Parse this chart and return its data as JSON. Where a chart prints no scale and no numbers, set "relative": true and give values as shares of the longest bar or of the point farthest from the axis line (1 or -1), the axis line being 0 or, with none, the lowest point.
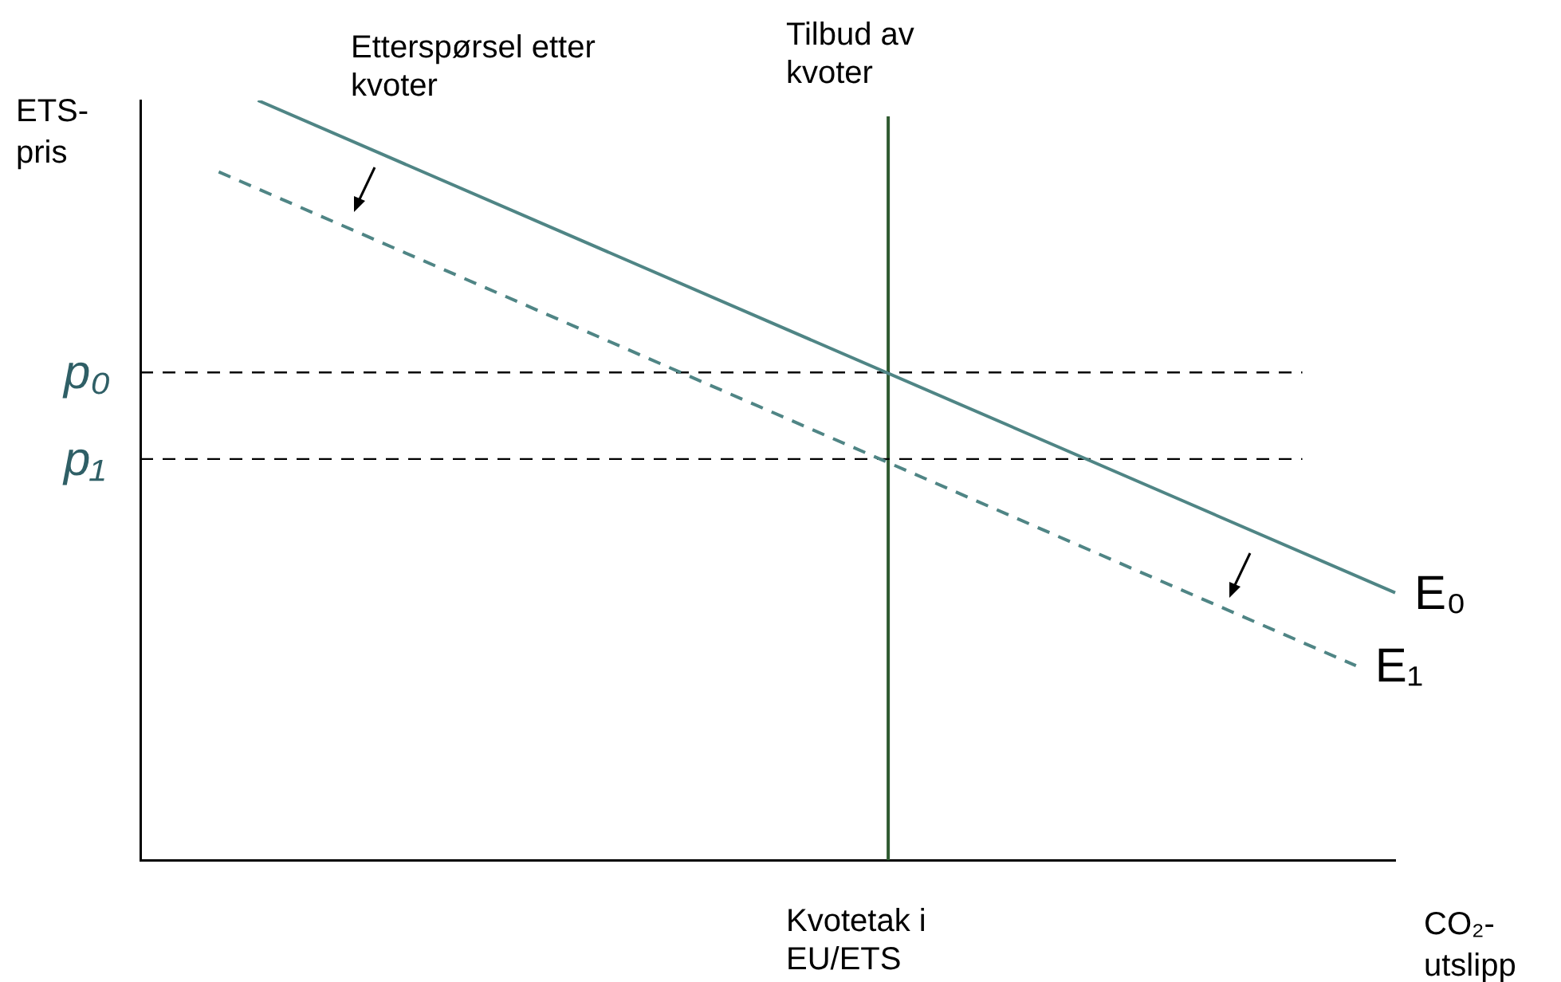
{
  "chart_data": {
    "type": "line",
    "relative": true,
    "xlabel": "CO₂-utslipp",
    "ylabel": "ETS-pris",
    "grid": false,
    "legend": false,
    "marker": "none",
    "categories": [
      null,
      null,
      null,
      null,
      null,
      null,
      null,
      null,
      null,
      null,
      null,
      null,
      null,
      null,
      null,
      null,
      null,
      null,
      null,
      null,
      null,
      null,
      null,
      null,
      null,
      null,
      null,
      null,
      null,
      null,
      null,
      null,
      null
    ],
    "series": [
      {
        "name": "E₀",
        "color": "#4f8585",
        "values": [
          null,
          null,
          null,
          1,
          null,
          null,
          null,
          null,
          null,
          null,
          null,
          null,
          null,
          null,
          null,
          null,
          null,
          null,
          null,
          null,
          null,
          null,
          null,
          null,
          null,
          null,
          null,
          null,
          null,
          null,
          null,
          null,
          0.352
        ],
        "line_style": "solid"
      },
      {
        "name": "E₁",
        "color": "#4f8585",
        "values": [
          null,
          null,
          0.906,
          null,
          null,
          null,
          null,
          null,
          null,
          null,
          null,
          null,
          null,
          null,
          null,
          null,
          null,
          null,
          null,
          null,
          null,
          null,
          null,
          null,
          null,
          null,
          null,
          null,
          null,
          null,
          null,
          0.256,
          null
        ],
        "line_style": "dashed"
      }
    ],
    "ref_lines": [
      {
        "axis": "y",
        "value": 0.642,
        "label": "p₀",
        "color": "#000000",
        "line_style": "dashed"
      },
      {
        "axis": "y",
        "value": 0.528,
        "label": "p₁",
        "color": "#000000",
        "line_style": "dashed"
      }
    ],
    "annotations": [
      "Etterspørsel etter kvoter",
      "Tilbud av kvoter",
      "Kvotetak i EU/ETS"
    ]
  }
}
